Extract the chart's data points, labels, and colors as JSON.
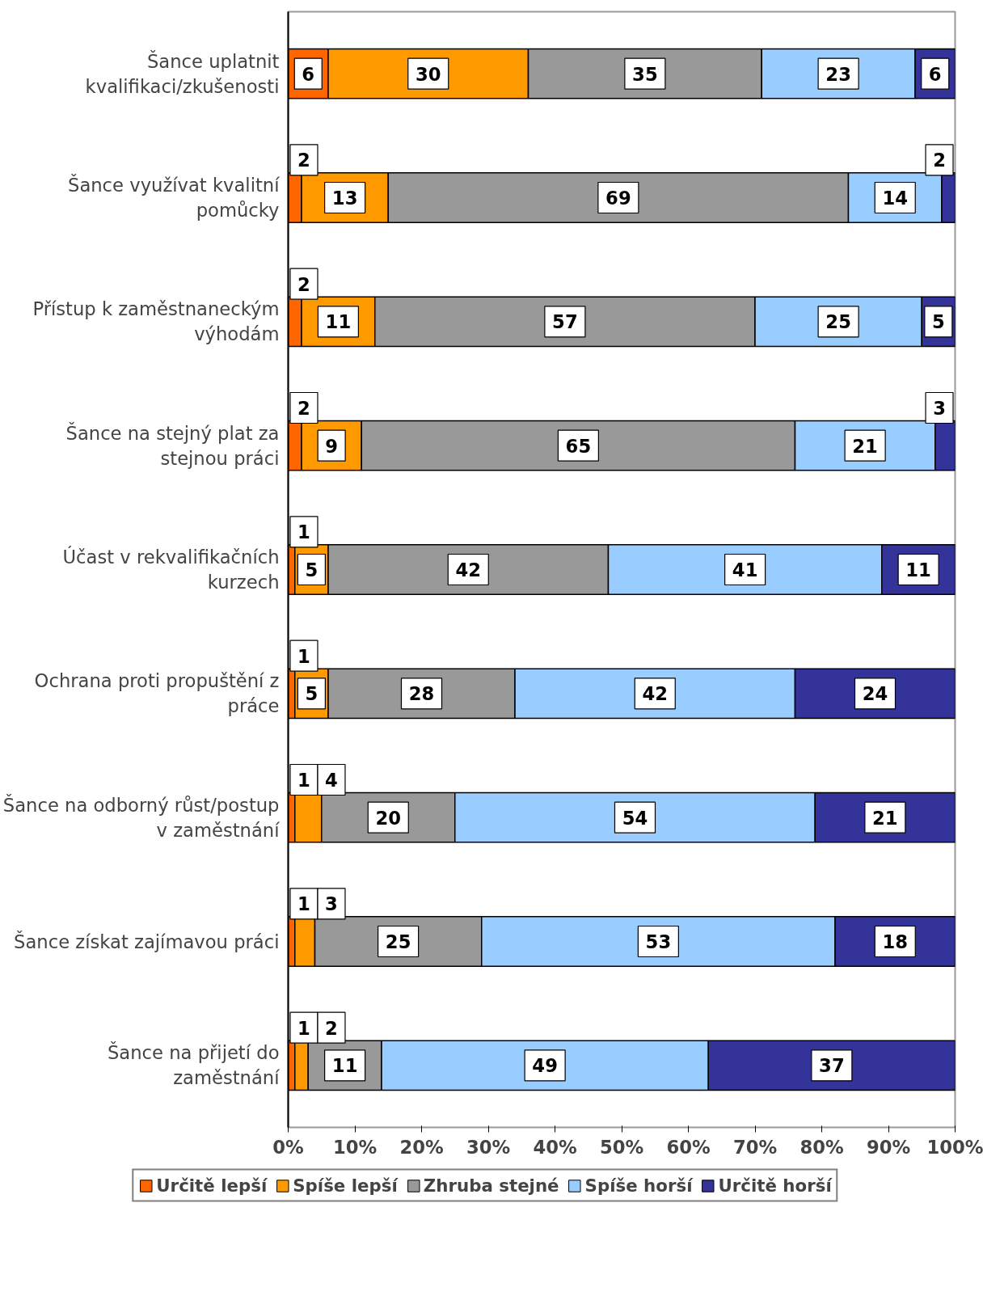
{
  "chart_data": {
    "type": "bar",
    "orientation": "horizontal",
    "stacked": true,
    "data_labels": true,
    "grid": false,
    "legend": "bottom",
    "categories": [
      "Šance uplatnit kvalifikaci/zkušenosti",
      "Šance využívat kvalitní pomůcky",
      "Přístup k zaměstnaneckým výhodám",
      "Šance na stejný plat za stejnou práci",
      "Účast v rekvalifikačních kurzech",
      "Ochrana proti propuštění z práce",
      "Šance na odborný růst/postup v zaměstnání",
      "Šance získat zajímavou práci",
      "Šance na přijetí do zaměstnání"
    ],
    "series": [
      {
        "name": "Určitě lepší",
        "color": "#ff6600",
        "values": [
          6,
          2,
          2,
          2,
          1,
          1,
          1,
          1,
          1
        ]
      },
      {
        "name": "Spíše lepší",
        "color": "#ff9900",
        "values": [
          30,
          13,
          11,
          9,
          5,
          5,
          4,
          3,
          2
        ]
      },
      {
        "name": "Zhruba stejné",
        "color": "#999999",
        "values": [
          35,
          69,
          57,
          65,
          42,
          28,
          20,
          25,
          11
        ]
      },
      {
        "name": "Spíše horší",
        "color": "#99ccff",
        "values": [
          23,
          14,
          25,
          21,
          41,
          42,
          54,
          53,
          49
        ]
      },
      {
        "name": "Určitě horší",
        "color": "#333399",
        "values": [
          6,
          2,
          5,
          3,
          11,
          24,
          21,
          18,
          37
        ]
      }
    ],
    "xlim": [
      0,
      100
    ],
    "xticks": [
      {
        "value": 0,
        "label": "0%"
      },
      {
        "value": 10,
        "label": "10%"
      },
      {
        "value": 20,
        "label": "20%"
      },
      {
        "value": 30,
        "label": "30%"
      },
      {
        "value": 40,
        "label": "40%"
      },
      {
        "value": 50,
        "label": "50%"
      },
      {
        "value": 60,
        "label": "60%"
      },
      {
        "value": 70,
        "label": "70%"
      },
      {
        "value": 80,
        "label": "80%"
      },
      {
        "value": 90,
        "label": "90%"
      },
      {
        "value": 100,
        "label": "100%"
      }
    ]
  }
}
